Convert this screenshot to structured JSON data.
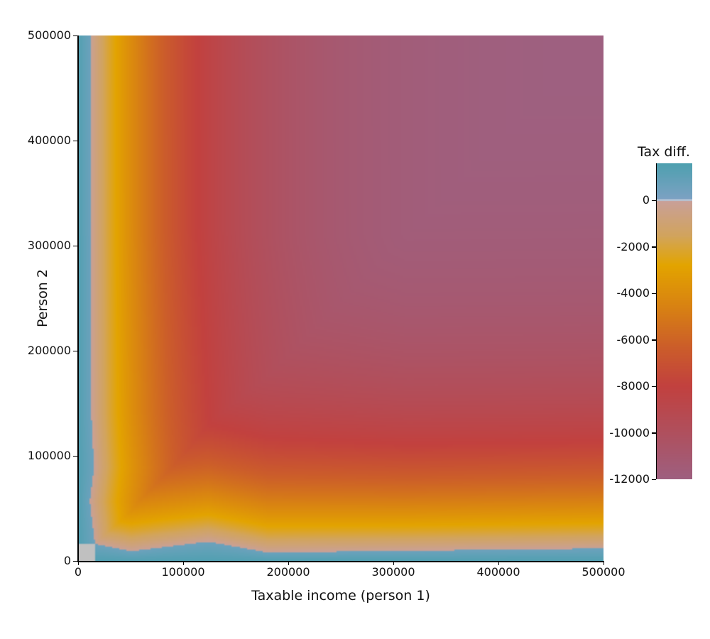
{
  "chart_data": {
    "type": "heatmap",
    "title": "",
    "xlabel": "Taxable income (person 1)",
    "ylabel": "Person 2",
    "xlim": [
      0,
      500000
    ],
    "ylim": [
      0,
      500000
    ],
    "x_ticks": [
      0,
      100000,
      200000,
      300000,
      400000,
      500000
    ],
    "x_tick_labels": [
      "0",
      "100000",
      "200000",
      "300000",
      "400000",
      "500000"
    ],
    "y_ticks": [
      0,
      100000,
      200000,
      300000,
      400000,
      500000
    ],
    "y_tick_labels": [
      "0",
      "100000",
      "200000",
      "300000",
      "400000",
      "500000"
    ],
    "colorbar": {
      "label": "Tax diff.",
      "range": [
        -12000,
        1600
      ],
      "ticks": [
        0,
        -2000,
        -4000,
        -6000,
        -8000,
        -10000,
        -12000
      ],
      "tick_labels": [
        "0",
        "-2000",
        "-4000",
        "-6000",
        "-8000",
        "-10000",
        "-12000"
      ],
      "colors": [
        {
          "value": 1600,
          "color": "#4fa0b0"
        },
        {
          "value": 0,
          "color": "#7fa2c4"
        },
        {
          "value": -1,
          "color": "#c9a09a"
        },
        {
          "value": -1500,
          "color": "#d2a45e"
        },
        {
          "value": -2800,
          "color": "#e3a400"
        },
        {
          "value": -4500,
          "color": "#d98412"
        },
        {
          "value": -6300,
          "color": "#cc5e2a"
        },
        {
          "value": -8000,
          "color": "#c2413f"
        },
        {
          "value": -10000,
          "color": "#b0505e"
        },
        {
          "value": -12000,
          "color": "#9e6080"
        }
      ]
    },
    "description": "Tax difference over combined incomes of person 1 and person 2; positive (blue) strip near x<15000 or y<15000, minimum around -12000 near the diagonal at high incomes",
    "zero_contour_y_at_x": [
      [
        15000,
        16000
      ],
      [
        50000,
        8000
      ],
      [
        80000,
        13000
      ],
      [
        120000,
        18000
      ],
      [
        180000,
        8000
      ],
      [
        500000,
        12000
      ]
    ],
    "zero_contour_x_at_y": [
      [
        12000,
        500000
      ],
      [
        13000,
        300000
      ],
      [
        15000,
        100000
      ],
      [
        10000,
        50000
      ],
      [
        15000,
        16000
      ]
    ],
    "no_data_region": {
      "x": [
        0,
        16000
      ],
      "y": [
        0,
        16000
      ],
      "color": "#c0c0c0"
    }
  }
}
